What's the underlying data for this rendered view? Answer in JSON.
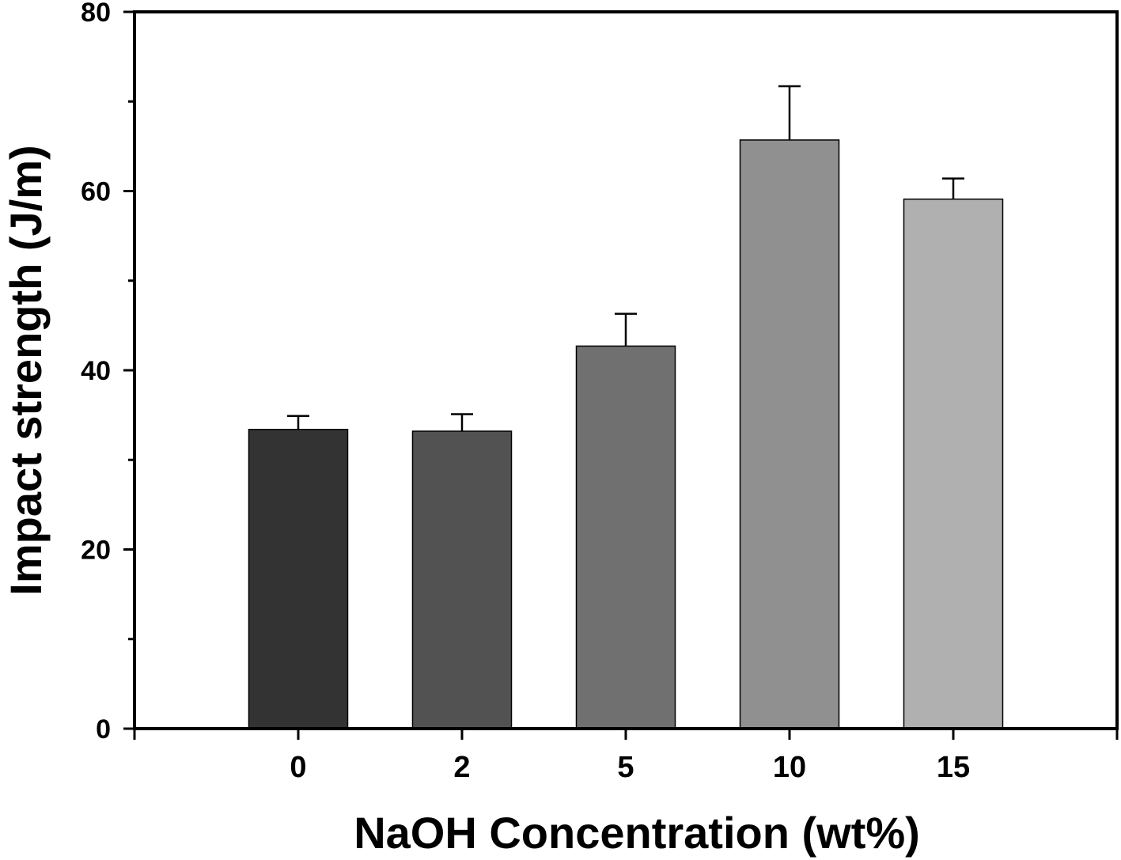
{
  "chart_data": {
    "type": "bar",
    "title": "",
    "xlabel": "NaOH Concentration (wt%)",
    "ylabel": "Impact strength (J/m)",
    "categories": [
      "0",
      "2",
      "5",
      "10",
      "15"
    ],
    "values": [
      33.4,
      33.2,
      42.7,
      65.7,
      59.1
    ],
    "error_upper": [
      1.5,
      1.9,
      3.6,
      6.0,
      2.3
    ],
    "bar_colors": [
      "#333333",
      "#525252",
      "#707070",
      "#909090",
      "#b0b0b0"
    ],
    "ylim": [
      0,
      80
    ],
    "yticks": [
      "0",
      "20",
      "40",
      "60",
      "80"
    ],
    "grid": false,
    "legend": "none"
  }
}
